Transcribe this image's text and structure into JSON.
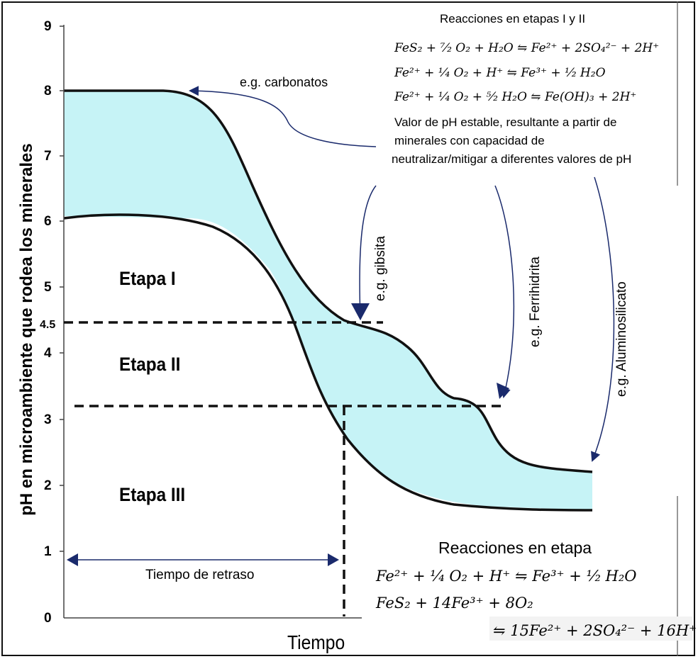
{
  "diagram": {
    "ylabel": "pH en microambiente que rodea los minerales",
    "xlabel": "Tiempo",
    "y_ticks": [
      "9",
      "8",
      "7",
      "6",
      "5",
      "4.5",
      "4",
      "3",
      "2",
      "1",
      "0"
    ],
    "stage_labels": [
      "Etapa I",
      "Etapa II",
      "Etapa III"
    ],
    "lag_label": "Tiempo de retraso",
    "top_box": {
      "title": "Reacciones en etapas I y II",
      "eq1": "FeS₂ + ⁷⁄₂ O₂ + H₂O ⇋ Fe²⁺ + 2SO₄²⁻ + 2H⁺",
      "eq2": "Fe²⁺ + ¹⁄₄ O₂ + H⁺ ⇋ Fe³⁺ + ¹⁄₂ H₂O",
      "eq3": "Fe²⁺ + ¹⁄₄ O₂ + ⁵⁄₂ H₂O ⇋ Fe(OH)₃ + 2H⁺",
      "desc1": "Valor de pH estable, resultante a partir de",
      "desc2": "minerales con capacidad de",
      "desc3": "neutralizar/mitigar  a diferentes valores de pH"
    },
    "bottom_box": {
      "title": "Reacciones en etapa",
      "eq1": "Fe²⁺ + ¹⁄₄ O₂ + H⁺ ⇋ Fe³⁺ + ¹⁄₂ H₂O",
      "eq2": "FeS₂ + 14Fe³⁺ + 8O₂",
      "eq3": "⇋ 15Fe²⁺ + 2SO₄²⁻ + 16H⁺"
    },
    "annotations": {
      "carbonatos": "e.g. carbonatos",
      "gibsita": "e.g. gibsita",
      "ferrihidrita": "e.g. Ferrihidrita",
      "aluminosilicato": "e.g. Aluminosilicato"
    },
    "colors": {
      "band": "#c6f3f6",
      "curve": "#111111",
      "arrow": "#1a2a6c",
      "guide": "#111111"
    }
  }
}
